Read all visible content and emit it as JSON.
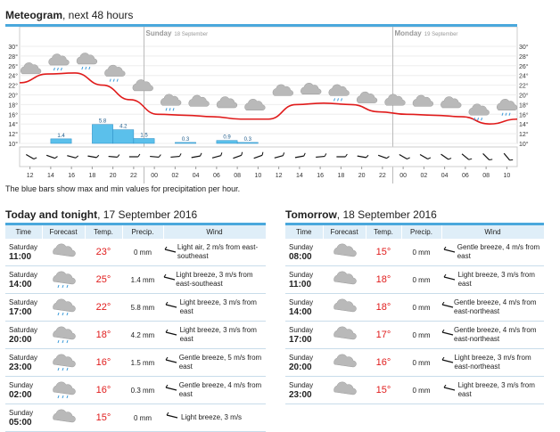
{
  "header": {
    "title_bold": "Meteogram",
    "title_rest": ", next 48 hours"
  },
  "meteogram": {
    "day_labels": [
      {
        "day": "Sunday",
        "date": "18 September"
      },
      {
        "day": "Monday",
        "date": "19 September"
      }
    ],
    "y_ticks": [
      "30°",
      "28°",
      "26°",
      "24°",
      "22°",
      "20°",
      "18°",
      "16°",
      "14°",
      "12°",
      "10°"
    ],
    "x_ticks": [
      "12",
      "14",
      "16",
      "18",
      "20",
      "22",
      "00",
      "02",
      "04",
      "06",
      "08",
      "10",
      "12",
      "14",
      "16",
      "18",
      "20",
      "22",
      "00",
      "02",
      "04",
      "06",
      "08",
      "10"
    ],
    "temperature_curve": [
      22.5,
      24.3,
      24.5,
      22,
      19,
      16,
      15.8,
      15.5,
      15,
      15,
      18,
      18.3,
      18,
      16.5,
      16,
      15.8,
      15.5,
      14,
      15
    ],
    "precip_bars": [
      {
        "from": "14",
        "value": 1.4,
        "label": "1.4"
      },
      {
        "from": "18",
        "value": 5.8,
        "label": "5.8"
      },
      {
        "from": "20",
        "value": 4.2,
        "label": "4.2"
      },
      {
        "from": "22",
        "value": 1.5,
        "label": "1.5"
      },
      {
        "from": "02",
        "value": 0.3,
        "label": "0.3"
      },
      {
        "from": "06",
        "value": 0.9,
        "label": "0.9"
      },
      {
        "from": "08",
        "value": 0.3,
        "label": "0.3"
      }
    ],
    "symbol_rows": [
      "cloud",
      "cloud-rain",
      "cloud-rain",
      "cloud-rain",
      "cloud",
      "cloud-rain",
      "cloud",
      "cloud",
      "cloud",
      "cloud",
      "cloud",
      "cloud-rain",
      "cloud",
      "cloud",
      "cloud",
      "cloud",
      "cloud-rain",
      "cloud-rain"
    ],
    "wind_arrows_deg": [
      300,
      290,
      285,
      280,
      275,
      270,
      275,
      265,
      260,
      255,
      250,
      250,
      255,
      260,
      265,
      270,
      280,
      290,
      300,
      300,
      305,
      310,
      315,
      320
    ]
  },
  "note": "The blue bars show max and min values for precipitation per hour.",
  "today": {
    "title_bold": "Today and tonight",
    "title_rest": ", 17 September 2016",
    "headers": [
      "Time",
      "Forecast",
      "Temp.",
      "Precip.",
      "Wind"
    ],
    "rows": [
      {
        "day": "Saturday",
        "hour": "11:00",
        "temp": "23°",
        "precip": "0 mm",
        "wind": "Light air, 2 m/s from east-southeast",
        "rain": false
      },
      {
        "day": "Saturday",
        "hour": "14:00",
        "temp": "25°",
        "precip": "1.4 mm",
        "wind": "Light breeze, 3 m/s from east-southeast",
        "rain": true
      },
      {
        "day": "Saturday",
        "hour": "17:00",
        "temp": "22°",
        "precip": "5.8 mm",
        "wind": "Light breeze, 3 m/s from east",
        "rain": true
      },
      {
        "day": "Saturday",
        "hour": "20:00",
        "temp": "18°",
        "precip": "4.2 mm",
        "wind": "Light breeze, 3 m/s from east",
        "rain": true
      },
      {
        "day": "Saturday",
        "hour": "23:00",
        "temp": "16°",
        "precip": "1.5 mm",
        "wind": "Gentle breeze, 5 m/s from east",
        "rain": true
      },
      {
        "day": "Sunday",
        "hour": "02:00",
        "temp": "16°",
        "precip": "0.3 mm",
        "wind": "Gentle breeze, 4 m/s from east",
        "rain": true
      },
      {
        "day": "Sunday",
        "hour": "05:00",
        "temp": "15°",
        "precip": "0 mm",
        "wind": "Light breeze, 3 m/s",
        "rain": false
      }
    ]
  },
  "tomorrow": {
    "title_bold": "Tomorrow",
    "title_rest": ", 18 September 2016",
    "headers": [
      "Time",
      "Forecast",
      "Temp.",
      "Precip.",
      "Wind"
    ],
    "rows": [
      {
        "day": "Sunday",
        "hour": "08:00",
        "temp": "15°",
        "precip": "0 mm",
        "wind": "Gentle breeze, 4 m/s from east"
      },
      {
        "day": "Sunday",
        "hour": "11:00",
        "temp": "18°",
        "precip": "0 mm",
        "wind": "Light breeze, 3 m/s from east"
      },
      {
        "day": "Sunday",
        "hour": "14:00",
        "temp": "18°",
        "precip": "0 mm",
        "wind": "Gentle breeze, 4 m/s from east-northeast"
      },
      {
        "day": "Sunday",
        "hour": "17:00",
        "temp": "17°",
        "precip": "0 mm",
        "wind": "Gentle breeze, 4 m/s from east-northeast"
      },
      {
        "day": "Sunday",
        "hour": "20:00",
        "temp": "16°",
        "precip": "0 mm",
        "wind": "Light breeze, 3 m/s from east-northeast"
      },
      {
        "day": "Sunday",
        "hour": "23:00",
        "temp": "15°",
        "precip": "0 mm",
        "wind": "Light breeze, 3 m/s from east"
      }
    ]
  },
  "colors": {
    "accent": "#4aa8dc",
    "temp_line": "#e01b1b",
    "bar": "#5bc0eb",
    "header_bg": "#dfeef8"
  }
}
